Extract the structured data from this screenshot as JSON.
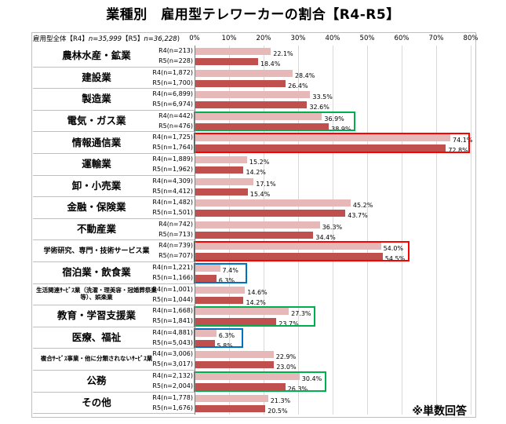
{
  "title": "業種別　雇用型テレワーカーの割合【R4-R5】",
  "overall": {
    "label": "雇用型全体【R4】",
    "n_r4": "n=35,999",
    "mid": "【R5】",
    "n_r5": "n=36,228",
    "end": ")"
  },
  "footnote": "※単数回答",
  "chart_data": {
    "type": "bar",
    "orientation": "horizontal",
    "xlim": [
      0,
      80
    ],
    "x_ticks": [
      "0%",
      "10%",
      "20%",
      "30%",
      "40%",
      "50%",
      "60%",
      "70%",
      "80%"
    ],
    "grid": true,
    "series_colors": {
      "R4": "#e6b9b8",
      "R5": "#c0504d"
    },
    "categories": [
      {
        "name": "農林水産・鉱業",
        "size": "large",
        "r4_n": "R4(n=213)",
        "r5_n": "R5(n=228)",
        "r4": 22.1,
        "r5": 18.4
      },
      {
        "name": "建設業",
        "size": "large",
        "r4_n": "R4(n=1,872)",
        "r5_n": "R5(n=1,700)",
        "r4": 28.4,
        "r5": 26.4
      },
      {
        "name": "製造業",
        "size": "large",
        "r4_n": "R4(n=6,899)",
        "r5_n": "R5(n=6,974)",
        "r4": 33.5,
        "r5": 32.6
      },
      {
        "name": "電気・ガス業",
        "size": "large",
        "r4_n": "R4(n=442)",
        "r5_n": "R5(n=476)",
        "r4": 36.9,
        "r5": 38.9,
        "box": "green"
      },
      {
        "name": "情報通信業",
        "size": "large",
        "r4_n": "R4(n=1,725)",
        "r5_n": "R5(n=1,764)",
        "r4": 74.1,
        "r5": 72.8,
        "box": "red"
      },
      {
        "name": "運輸業",
        "size": "large",
        "r4_n": "R4(n=1,889)",
        "r5_n": "R5(n=1,962)",
        "r4": 15.2,
        "r5": 14.2
      },
      {
        "name": "卸・小売業",
        "size": "large",
        "r4_n": "R4(n=4,309)",
        "r5_n": "R5(n=4,412)",
        "r4": 17.1,
        "r5": 15.4
      },
      {
        "name": "金融・保険業",
        "size": "large",
        "r4_n": "R4(n=1,482)",
        "r5_n": "R5(n=1,501)",
        "r4": 45.2,
        "r5": 43.7
      },
      {
        "name": "不動産業",
        "size": "large",
        "r4_n": "R4(n=742)",
        "r5_n": "R5(n=713)",
        "r4": 36.3,
        "r5": 34.4
      },
      {
        "name": "学術研究、専門・技術サービス業",
        "size": "medium",
        "r4_n": "R4(n=739)",
        "r5_n": "R5(n=707)",
        "r4": 54.0,
        "r5": 54.5,
        "box": "red"
      },
      {
        "name": "宿泊業・飲食業",
        "size": "large",
        "r4_n": "R4(n=1,221)",
        "r5_n": "R5(n=1,166)",
        "r4": 7.4,
        "r5": 6.3,
        "box": "blue"
      },
      {
        "name": "生活関連ｻｰﾋﾞｽ業（洗濯・理美容・冠婚葬祭業等）、娯楽業",
        "size": "small",
        "r4_n": "R4(n=1,001)",
        "r5_n": "R5(n=1,044)",
        "r4": 14.6,
        "r5": 14.2
      },
      {
        "name": "教育・学習支援業",
        "size": "large",
        "r4_n": "R4(n=1,668)",
        "r5_n": "R5(n=1,841)",
        "r4": 27.3,
        "r5": 23.7,
        "box": "green"
      },
      {
        "name": "医療、福祉",
        "size": "large",
        "r4_n": "R4(n=4,881)",
        "r5_n": "R5(n=5,043)",
        "r4": 6.3,
        "r5": 5.8,
        "box": "blue"
      },
      {
        "name": "複合ｻｰﾋﾞｽ事業・他に分類されないｻｰﾋﾞｽ業",
        "size": "small",
        "r4_n": "R4(n=3,006)",
        "r5_n": "R5(n=3,017)",
        "r4": 22.9,
        "r5": 23.0
      },
      {
        "name": "公務",
        "size": "large",
        "r4_n": "R4(n=2,132)",
        "r5_n": "R5(n=2,004)",
        "r4": 30.4,
        "r5": 26.3,
        "box": "green"
      },
      {
        "name": "その他",
        "size": "large",
        "r4_n": "R4(n=1,778)",
        "r5_n": "R5(n=1,676)",
        "r4": 21.3,
        "r5": 20.5
      }
    ]
  }
}
